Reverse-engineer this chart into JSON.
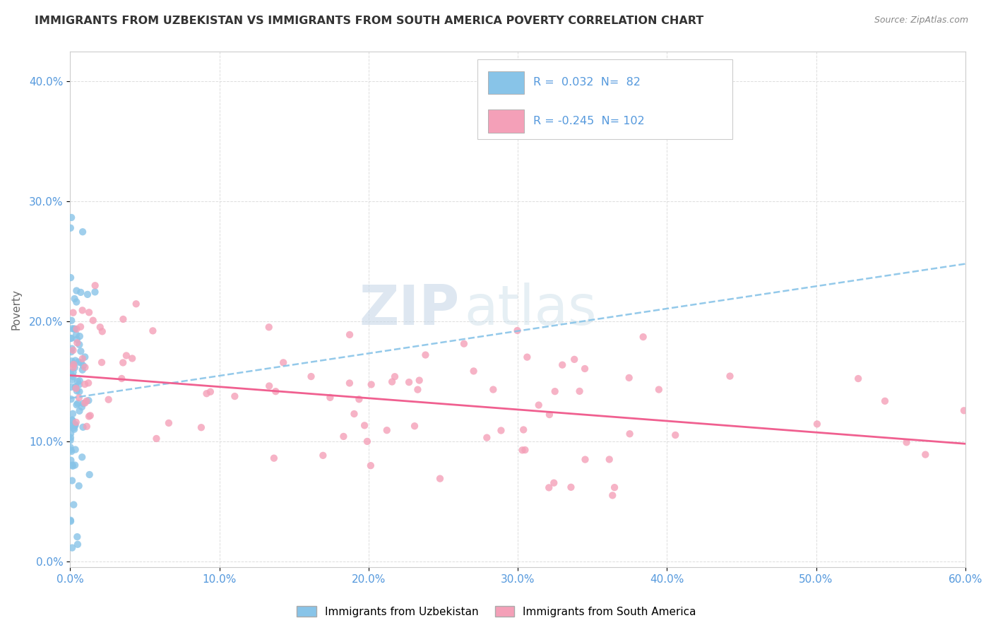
{
  "title": "IMMIGRANTS FROM UZBEKISTAN VS IMMIGRANTS FROM SOUTH AMERICA POVERTY CORRELATION CHART",
  "source": "Source: ZipAtlas.com",
  "ylabel": "Poverty",
  "xlim": [
    0.0,
    0.6
  ],
  "ylim": [
    -0.005,
    0.425
  ],
  "r_uzbekistan": 0.032,
  "n_uzbekistan": 82,
  "r_south_america": -0.245,
  "n_south_america": 102,
  "color_uzbekistan": "#88c4e8",
  "color_south_america": "#f4a0b8",
  "line_color_uzbekistan": "#88c4e8",
  "line_color_south_america": "#f06090",
  "watermark_zip": "ZIP",
  "watermark_atlas": "atlas",
  "x_ticks": [
    0.0,
    0.1,
    0.2,
    0.3,
    0.4,
    0.5,
    0.6
  ],
  "y_ticks": [
    0.0,
    0.1,
    0.2,
    0.3,
    0.4
  ],
  "tick_color": "#5599dd",
  "grid_color": "#dddddd",
  "title_color": "#333333",
  "source_color": "#888888",
  "ylabel_color": "#666666"
}
